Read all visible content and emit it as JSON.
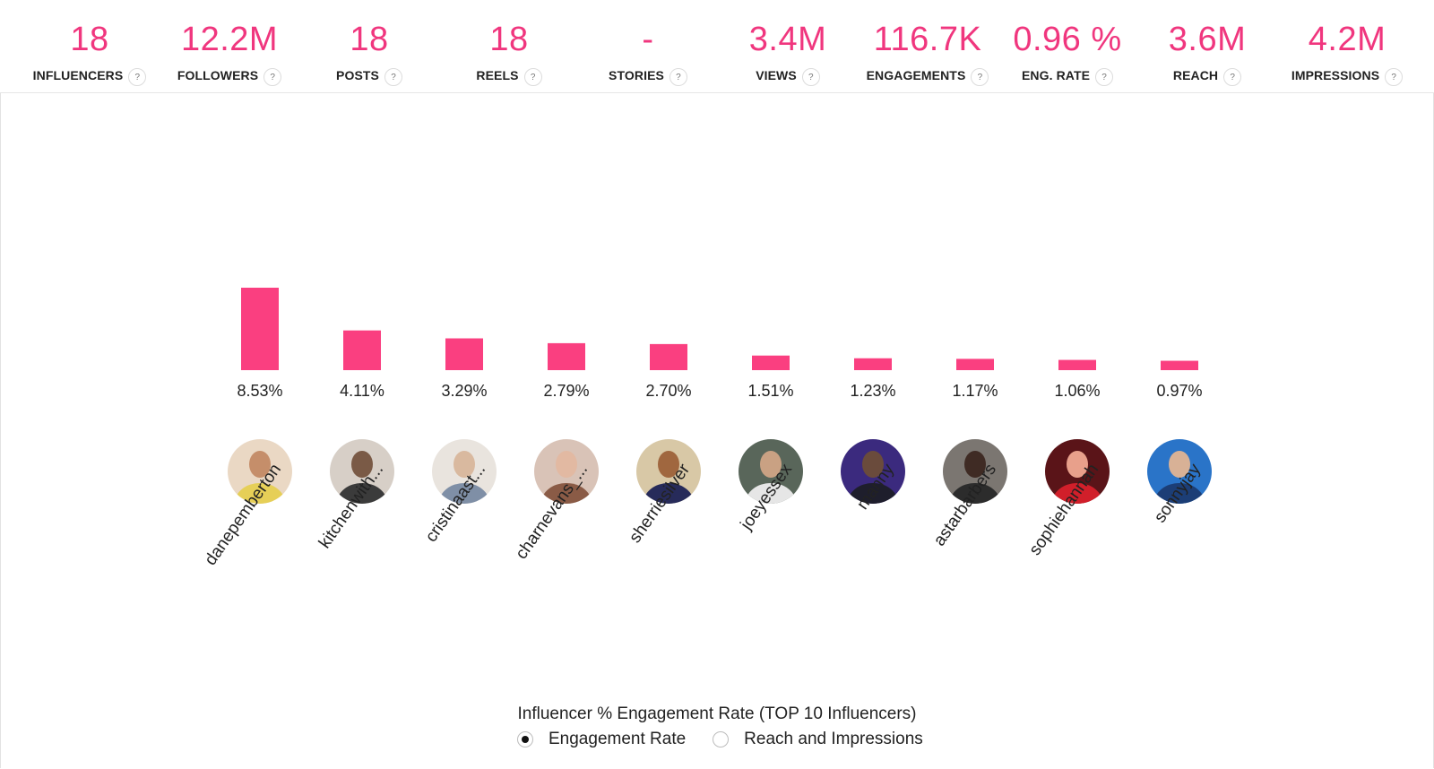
{
  "stats": [
    {
      "value": "18",
      "label": "INFLUENCERS"
    },
    {
      "value": "12.2M",
      "label": "FOLLOWERS"
    },
    {
      "value": "18",
      "label": "POSTS"
    },
    {
      "value": "18",
      "label": "REELS"
    },
    {
      "value": "-",
      "label": "STORIES"
    },
    {
      "value": "3.4M",
      "label": "VIEWS"
    },
    {
      "value": "116.7K",
      "label": "ENGAGEMENTS"
    },
    {
      "value": "0.96 %",
      "label": "ENG. RATE"
    },
    {
      "value": "3.6M",
      "label": "REACH"
    },
    {
      "value": "4.2M",
      "label": "IMPRESSIONS"
    }
  ],
  "help_icon_text": "?",
  "colors": {
    "accent": "#f0367e",
    "bar": "#fa3f80"
  },
  "chart_data": {
    "type": "bar",
    "title": "Influencer % Engagement Rate (TOP 10 Influencers)",
    "categories": [
      "danepemberton",
      "kitchenwith...",
      "cristinaast...",
      "charnevans_...",
      "sherriesilver",
      "joeyessex",
      "manny",
      "astarbarbers",
      "sophiehannah",
      "sonnyjay"
    ],
    "values": [
      8.53,
      4.11,
      3.29,
      2.79,
      2.7,
      1.51,
      1.23,
      1.17,
      1.06,
      0.97
    ],
    "data_labels": [
      "8.53%",
      "4.11%",
      "3.29%",
      "2.79%",
      "2.70%",
      "1.51%",
      "1.23%",
      "1.17%",
      "1.06%",
      "0.97%"
    ],
    "xlabel": "",
    "ylabel": "",
    "grid": false
  },
  "avatars": [
    {
      "bg": "#ead8c4",
      "face": "#c58e6a",
      "body": "#e6cf57"
    },
    {
      "bg": "#d7cfc7",
      "face": "#7a5a46",
      "body": "#3b3b3b"
    },
    {
      "bg": "#e9e4de",
      "face": "#d9b99f",
      "body": "#7f8fa6"
    },
    {
      "bg": "#d9c3b7",
      "face": "#e2b9a2",
      "body": "#8a5b46"
    },
    {
      "bg": "#d8c8a6",
      "face": "#a0673f",
      "body": "#272b5a"
    },
    {
      "bg": "#59665a",
      "face": "#c9a183",
      "body": "#e6e6e6"
    },
    {
      "bg": "#3b2a7e",
      "face": "#6a4b3c",
      "body": "#1e1e2c"
    },
    {
      "bg": "#7b7671",
      "face": "#3f2b24",
      "body": "#2c2c2c"
    },
    {
      "bg": "#5a1418",
      "face": "#e8a08b",
      "body": "#d11f2a"
    },
    {
      "bg": "#2a74c8",
      "face": "#d8b196",
      "body": "#1c3e76"
    }
  ],
  "legend": {
    "options": [
      {
        "label": "Engagement Rate",
        "checked": true
      },
      {
        "label": "Reach and Impressions",
        "checked": false
      }
    ]
  }
}
